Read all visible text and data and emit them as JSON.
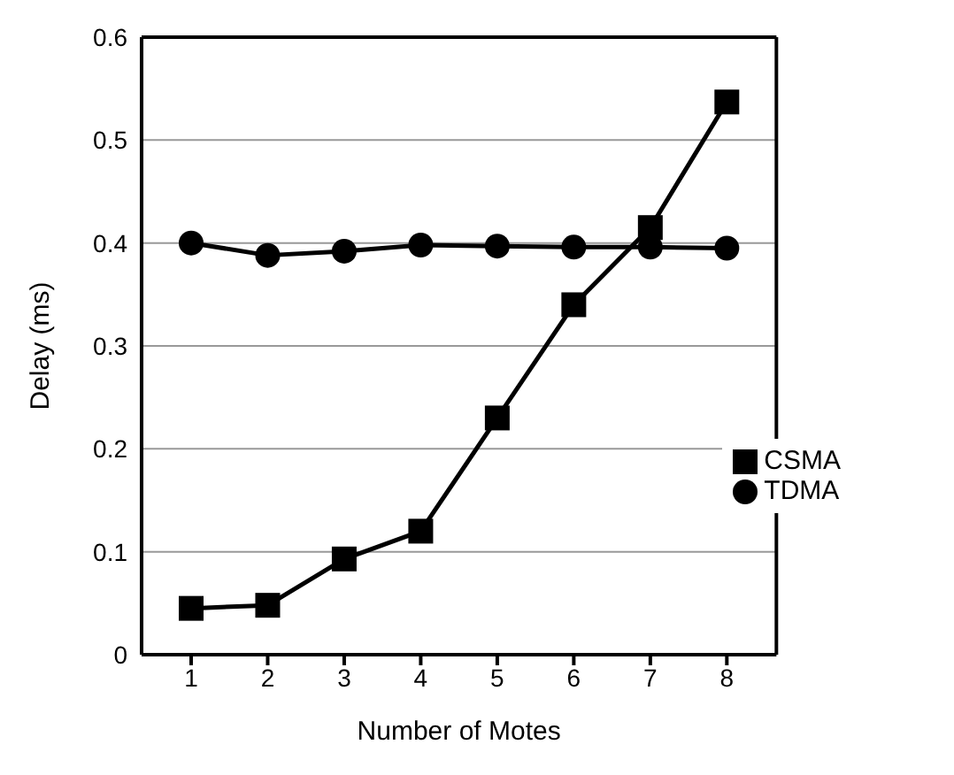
{
  "chart_data": {
    "type": "line",
    "xlabel": "Number of Motes",
    "ylabel": "Delay (ms)",
    "categories": [
      "1",
      "2",
      "3",
      "4",
      "5",
      "6",
      "7",
      "8"
    ],
    "series": [
      {
        "name": "CSMA",
        "color": "#000000",
        "marker": "square",
        "values": [
          0.045,
          0.048,
          0.093,
          0.12,
          0.23,
          0.34,
          0.415,
          0.537
        ]
      },
      {
        "name": "TDMA",
        "color": "#000000",
        "marker": "circle",
        "values": [
          0.4,
          0.388,
          0.392,
          0.398,
          0.397,
          0.396,
          0.396,
          0.395
        ]
      }
    ],
    "ylim": [
      0,
      0.6
    ],
    "yticks": [
      0,
      0.1,
      0.2,
      0.3,
      0.4,
      0.5,
      0.6
    ],
    "grid": "y",
    "legend": "right",
    "line_style": "solid"
  }
}
